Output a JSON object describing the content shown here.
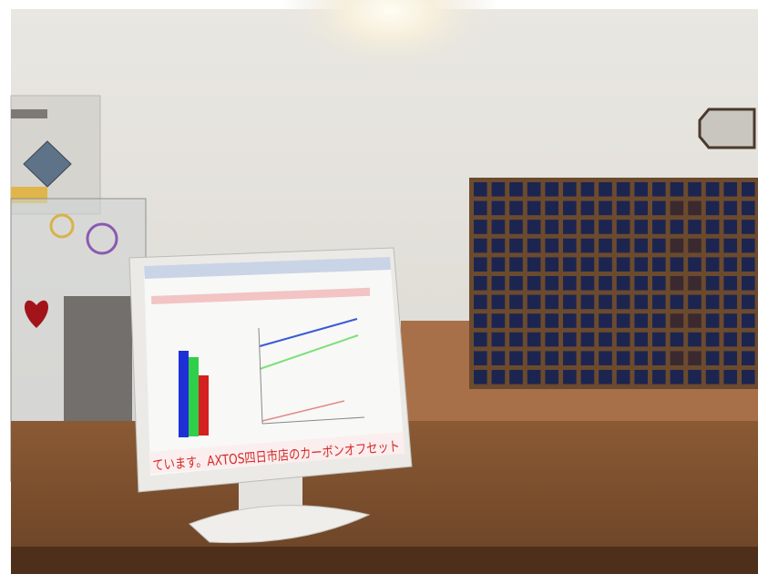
{
  "screen": {
    "ticker": "ています。AXTOS四日市店のカーボンオフセット"
  }
}
